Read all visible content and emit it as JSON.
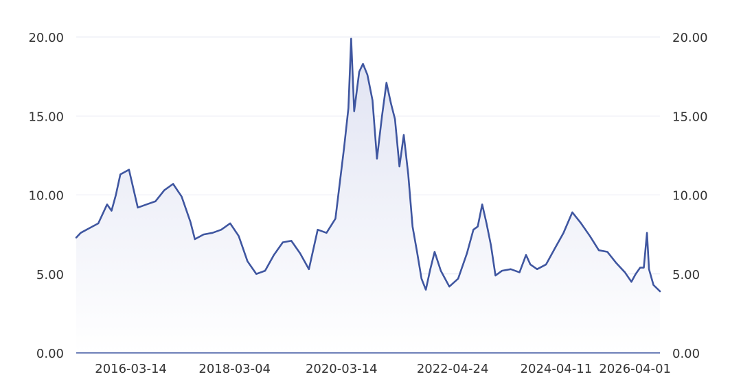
{
  "chart_data": {
    "type": "area",
    "title": "",
    "xlabel": "",
    "ylabel": "",
    "x_ticks": [
      "2016-03-14",
      "2018-03-04",
      "2020-03-14",
      "2022-04-24",
      "2024-04-11",
      "2026-04-01"
    ],
    "y_ticks": [
      "0.00",
      "5.00",
      "10.00",
      "15.00",
      "20.00"
    ],
    "ylim": [
      0,
      20
    ],
    "xlim": [
      "2015-03-01",
      "2026-04-01"
    ],
    "grid": true,
    "dual_y_axis_labels": true,
    "series": [
      {
        "color": "#3f56a0",
        "fill_top_color": "#dfe2f2",
        "fill_bottom_color": "#ffffff",
        "points": [
          [
            "2015-03-01",
            7.3
          ],
          [
            "2015-04-01",
            7.6
          ],
          [
            "2015-06-01",
            7.9
          ],
          [
            "2015-08-01",
            8.2
          ],
          [
            "2015-10-01",
            9.4
          ],
          [
            "2015-11-01",
            9.0
          ],
          [
            "2015-12-01",
            10.0
          ],
          [
            "2016-01-01",
            11.3
          ],
          [
            "2016-03-01",
            11.6
          ],
          [
            "2016-05-01",
            9.2
          ],
          [
            "2016-07-01",
            9.4
          ],
          [
            "2016-09-01",
            9.6
          ],
          [
            "2016-11-01",
            10.3
          ],
          [
            "2017-01-01",
            10.7
          ],
          [
            "2017-03-01",
            9.9
          ],
          [
            "2017-05-01",
            8.3
          ],
          [
            "2017-06-01",
            7.2
          ],
          [
            "2017-08-01",
            7.5
          ],
          [
            "2017-10-01",
            7.6
          ],
          [
            "2017-12-01",
            7.8
          ],
          [
            "2018-02-01",
            8.2
          ],
          [
            "2018-04-01",
            7.4
          ],
          [
            "2018-06-01",
            5.8
          ],
          [
            "2018-08-01",
            5.0
          ],
          [
            "2018-10-01",
            5.2
          ],
          [
            "2018-12-01",
            6.2
          ],
          [
            "2019-02-01",
            7.0
          ],
          [
            "2019-04-01",
            7.1
          ],
          [
            "2019-06-01",
            6.3
          ],
          [
            "2019-08-01",
            5.3
          ],
          [
            "2019-10-01",
            7.8
          ],
          [
            "2019-12-01",
            7.6
          ],
          [
            "2020-02-01",
            8.5
          ],
          [
            "2020-04-01",
            13.0
          ],
          [
            "2020-05-01",
            15.5
          ],
          [
            "2020-05-20",
            19.9
          ],
          [
            "2020-06-10",
            15.3
          ],
          [
            "2020-07-15",
            17.8
          ],
          [
            "2020-08-10",
            18.3
          ],
          [
            "2020-09-10",
            17.6
          ],
          [
            "2020-10-15",
            16.0
          ],
          [
            "2020-11-15",
            12.3
          ],
          [
            "2020-12-20",
            15.0
          ],
          [
            "2021-01-20",
            17.1
          ],
          [
            "2021-02-20",
            15.8
          ],
          [
            "2021-03-20",
            14.8
          ],
          [
            "2021-04-20",
            11.8
          ],
          [
            "2021-05-20",
            13.8
          ],
          [
            "2021-06-20",
            11.3
          ],
          [
            "2021-07-20",
            8.0
          ],
          [
            "2021-08-20",
            6.4
          ],
          [
            "2021-09-20",
            4.7
          ],
          [
            "2021-10-20",
            4.0
          ],
          [
            "2021-11-20",
            5.3
          ],
          [
            "2021-12-20",
            6.4
          ],
          [
            "2022-02-01",
            5.2
          ],
          [
            "2022-04-01",
            4.2
          ],
          [
            "2022-06-01",
            4.7
          ],
          [
            "2022-08-01",
            6.3
          ],
          [
            "2022-09-15",
            7.8
          ],
          [
            "2022-10-15",
            8.0
          ],
          [
            "2022-11-15",
            9.4
          ],
          [
            "2022-12-15",
            8.2
          ],
          [
            "2023-01-15",
            6.8
          ],
          [
            "2023-02-15",
            4.9
          ],
          [
            "2023-04-01",
            5.2
          ],
          [
            "2023-06-01",
            5.3
          ],
          [
            "2023-08-01",
            5.1
          ],
          [
            "2023-09-15",
            6.2
          ],
          [
            "2023-10-15",
            5.6
          ],
          [
            "2023-12-01",
            5.3
          ],
          [
            "2024-02-01",
            5.6
          ],
          [
            "2024-04-01",
            6.6
          ],
          [
            "2024-06-01",
            7.6
          ],
          [
            "2024-08-01",
            8.9
          ],
          [
            "2024-10-01",
            8.2
          ],
          [
            "2024-12-01",
            7.4
          ],
          [
            "2025-02-01",
            6.5
          ],
          [
            "2025-04-01",
            6.4
          ],
          [
            "2025-06-01",
            5.7
          ],
          [
            "2025-08-01",
            5.1
          ],
          [
            "2025-09-15",
            4.5
          ],
          [
            "2025-10-15",
            5.0
          ],
          [
            "2025-11-15",
            5.4
          ],
          [
            "2025-12-10",
            5.4
          ],
          [
            "2026-01-01",
            7.6
          ],
          [
            "2026-01-15",
            5.3
          ],
          [
            "2026-02-15",
            4.3
          ],
          [
            "2026-04-01",
            3.9
          ]
        ]
      }
    ],
    "axis_color": "#3f56a0",
    "grid_color": "#e7e8f3",
    "tick_label_color": "#333333"
  }
}
